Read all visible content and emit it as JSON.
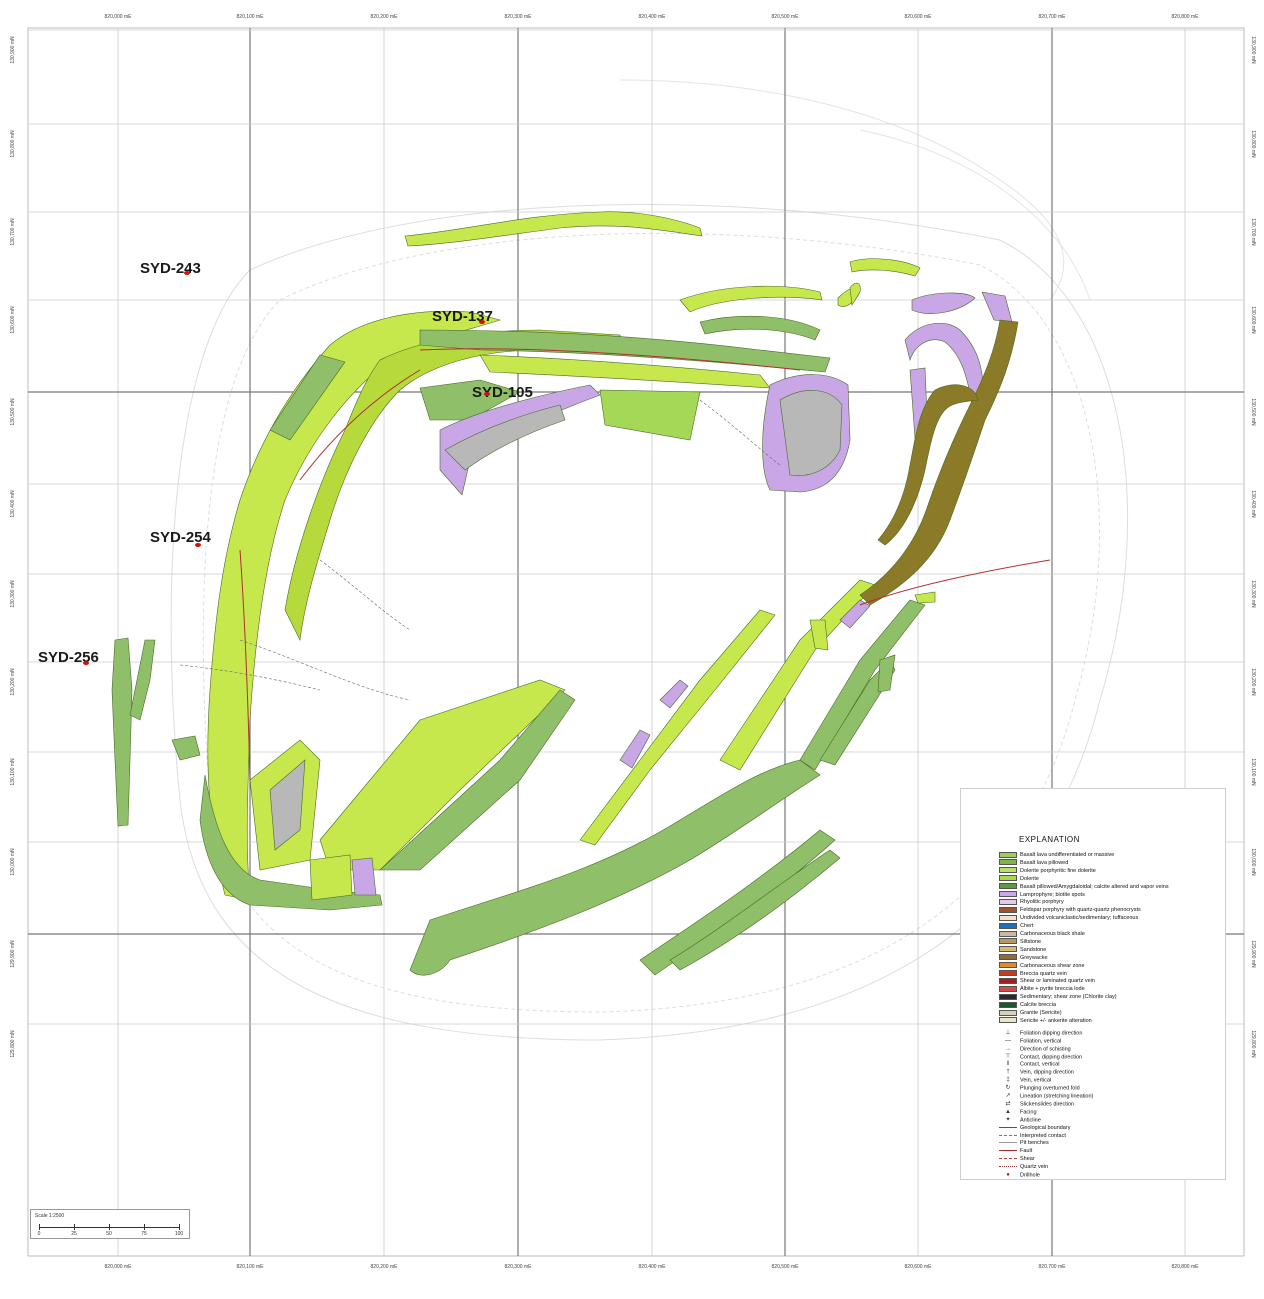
{
  "drill_holes": [
    {
      "id": "SYD-243"
    },
    {
      "id": "SYD-137"
    },
    {
      "id": "SYD-105"
    },
    {
      "id": "SYD-254"
    },
    {
      "id": "SYD-256"
    }
  ],
  "grid": {
    "easting_labels": [
      "820,000 mE",
      "820,100 mE",
      "820,200 mE",
      "820,300 mE",
      "820,400 mE",
      "820,500 mE",
      "820,600 mE",
      "820,700 mE",
      "820,800 mE"
    ],
    "northing_labels": [
      "130,900 mN",
      "130,800 mN",
      "130,700 mN",
      "130,600 mN",
      "130,500 mN",
      "130,400 mN",
      "130,300 mN",
      "130,200 mN",
      "130,100 mN",
      "130,000 mN",
      "129,900 mN",
      "129,800 mN"
    ]
  },
  "legend": {
    "title": "EXPLANATION",
    "units": [
      {
        "label": "Basalt lava undifferentiated or massive",
        "color": "#9ccc5a"
      },
      {
        "label": "Basalt lava pillowed",
        "color": "#7fb24a"
      },
      {
        "label": "Dolerite porphyritic fine dolerite",
        "color": "#b8e06a"
      },
      {
        "label": "Dolerite",
        "color": "#a4d94a"
      },
      {
        "label": "Basalt pillowed/Amygdaloidal; calcite altered and vapor veins",
        "color": "#5f9a3c"
      },
      {
        "label": "Lamprophyre; biotite spots",
        "color": "#c8a8e8"
      },
      {
        "label": "Rhyolitic porphyry",
        "color": "#e8c8e8"
      },
      {
        "label": "Feldspar porphyry with quartz-quartz phenocrysts",
        "color": "#a0522d"
      },
      {
        "label": "Undivided volcaniclastic/sedimentary; tuffaceous",
        "color": "#f0e0d0"
      },
      {
        "label": "Chert",
        "color": "#1e6fb8"
      },
      {
        "label": "Carbonaceous black shale",
        "color": "#c8b8a8"
      },
      {
        "label": "Siltstone",
        "color": "#b89860"
      },
      {
        "label": "Sandstone",
        "color": "#d8b870"
      },
      {
        "label": "Greywacke",
        "color": "#8b6b3a"
      },
      {
        "label": "Carbonaceous shear zone",
        "color": "#e08a20"
      },
      {
        "label": "Breccia quartz vein",
        "color": "#c83a20"
      },
      {
        "label": "Shear or laminated quartz vein",
        "color": "#a81e1e"
      },
      {
        "label": "Albite + pyrite breccia lode",
        "color": "#d84a4a"
      },
      {
        "label": "Sedimentary; shear zone (Chlorite clay)",
        "color": "#2a2a2a"
      },
      {
        "label": "Calcite breccia",
        "color": "#1a5a2a"
      },
      {
        "label": "Granite (Sericite)",
        "color": "#d8d0b0"
      },
      {
        "label": "Sericite +/- ankerite alteration",
        "color": "#e8e8c8"
      }
    ],
    "symbols": [
      {
        "label": "Foliation dipping direction",
        "glyph": "⊥"
      },
      {
        "label": "Foliation, vertical",
        "glyph": "—"
      },
      {
        "label": "Direction of schisting",
        "glyph": "→"
      },
      {
        "label": "Contact, dipping direction",
        "glyph": "⊤"
      },
      {
        "label": "Contact, vertical",
        "glyph": "‖"
      },
      {
        "label": "Vein, dipping direction",
        "glyph": "†"
      },
      {
        "label": "Vein, vertical",
        "glyph": "‡"
      },
      {
        "label": "Plunging overturned fold",
        "glyph": "↻"
      },
      {
        "label": "Lineation (stretching lineation)",
        "glyph": "↗"
      },
      {
        "label": "Slickenslides direction",
        "glyph": "⇄"
      },
      {
        "label": "Facing",
        "glyph": "▲"
      },
      {
        "label": "Anticline",
        "glyph": "✦"
      }
    ],
    "lines": [
      {
        "label": "Geological boundary",
        "color": "#555555",
        "style": "solid"
      },
      {
        "label": "Interpreted contact",
        "color": "#777777",
        "style": "dashed"
      },
      {
        "label": "Pit benches",
        "color": "#999999",
        "style": "solid"
      },
      {
        "label": "Fault",
        "color": "#b03030",
        "style": "solid"
      },
      {
        "label": "Shear",
        "color": "#c04040",
        "style": "dashed"
      },
      {
        "label": "Quartz vein",
        "color": "#903030",
        "style": "dotted"
      },
      {
        "label": "Drillhole",
        "color": "#d01010",
        "style": "dot"
      }
    ]
  },
  "scale": {
    "text": "Scale 1:2500",
    "ticks": [
      "0",
      "25",
      "50",
      "75",
      "100"
    ]
  },
  "colors": {
    "grid": "#999999",
    "drill_collar": "#d01010",
    "basalt": "#8fbf68",
    "dolerite": "#c6e84c",
    "lamprophyre": "#c9a6e6",
    "greywacke": "#8b7a28",
    "pit_outline": "#d8d8d8"
  }
}
